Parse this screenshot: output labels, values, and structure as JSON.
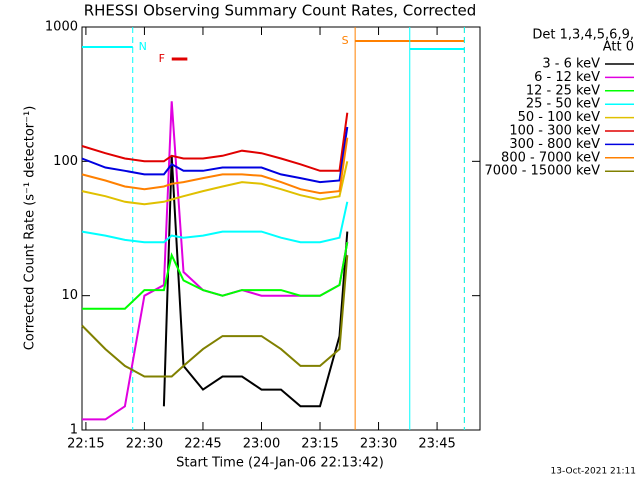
{
  "chart_data": {
    "type": "line",
    "title": "RHESSI Observing Summary Count Rates, Corrected",
    "x_label": "Start Time (24-Jan-06 22:13:42)",
    "y_label": "Corrected Count Rate (s⁻¹ detector⁻¹)",
    "footer": "13-Oct-2021 21:11",
    "legend_header": [
      "Det 1,3,4,5,6,9,",
      "Att 0"
    ],
    "legend": "right",
    "log_y": true,
    "xlim": [
      "22:14",
      "23:56"
    ],
    "xticks": [
      "22:15",
      "22:30",
      "22:45",
      "23:00",
      "23:15",
      "23:30",
      "23:45"
    ],
    "ylim": [
      1,
      1000
    ],
    "yticks": [
      1,
      10,
      100,
      1000
    ],
    "x": [
      "22:14",
      "22:20",
      "22:25",
      "22:30",
      "22:35",
      "22:37",
      "22:40",
      "22:45",
      "22:50",
      "22:55",
      "23:00",
      "23:05",
      "23:10",
      "23:15",
      "23:20",
      "23:22"
    ],
    "series": [
      {
        "name": "3 - 6 keV",
        "color": "#000000",
        "values": [
          null,
          null,
          null,
          null,
          1.5,
          110,
          3,
          2,
          2.5,
          2.5,
          2,
          2,
          1.5,
          1.5,
          5,
          30
        ]
      },
      {
        "name": "6 - 12 keV",
        "color": "#e000e0",
        "values": [
          1.2,
          1.2,
          1.5,
          10,
          12,
          280,
          15,
          11,
          10,
          11,
          10,
          10,
          10,
          10,
          12,
          25
        ]
      },
      {
        "name": "12 - 25 keV",
        "color": "#00ff00",
        "values": [
          8,
          8,
          8,
          11,
          11,
          20,
          13,
          11,
          10,
          11,
          11,
          11,
          10,
          10,
          12,
          25
        ]
      },
      {
        "name": "25 - 50 keV",
        "color": "#00ffff",
        "values": [
          30,
          28,
          26,
          25,
          25,
          28,
          27,
          28,
          30,
          30,
          30,
          27,
          25,
          25,
          27,
          50
        ]
      },
      {
        "name": "50 - 100 keV",
        "color": "#e0c000",
        "values": [
          60,
          55,
          50,
          48,
          50,
          52,
          55,
          60,
          65,
          70,
          68,
          62,
          56,
          52,
          55,
          100
        ]
      },
      {
        "name": "100 - 300 keV",
        "color": "#e00000",
        "values": [
          130,
          115,
          105,
          100,
          100,
          110,
          105,
          105,
          110,
          120,
          115,
          105,
          95,
          85,
          85,
          230
        ]
      },
      {
        "name": "300 - 800 keV",
        "color": "#0000e0",
        "values": [
          105,
          90,
          85,
          80,
          80,
          95,
          85,
          85,
          90,
          90,
          90,
          80,
          75,
          70,
          72,
          180
        ]
      },
      {
        "name": "800 - 7000 keV",
        "color": "#ff8000",
        "values": [
          80,
          72,
          65,
          62,
          65,
          68,
          70,
          75,
          80,
          80,
          78,
          70,
          62,
          58,
          60,
          150
        ]
      },
      {
        "name": "7000 - 15000 keV",
        "color": "#808000",
        "values": [
          6,
          4,
          3,
          2.5,
          2.5,
          2.5,
          3,
          4,
          5,
          5,
          5,
          4,
          3,
          3,
          4,
          20
        ]
      }
    ],
    "periods": [
      {
        "label": "N",
        "start": "22:14",
        "end": "22:27",
        "color": "#00ffff"
      },
      {
        "label": "F",
        "start": "22:37",
        "end": "22:41",
        "color": "#e00000"
      },
      {
        "label": "S",
        "start": "23:24",
        "end": "23:52",
        "color": "#ff8000"
      },
      {
        "label": null,
        "start": "23:38",
        "end": "23:52",
        "color": "#00ffff"
      }
    ]
  }
}
